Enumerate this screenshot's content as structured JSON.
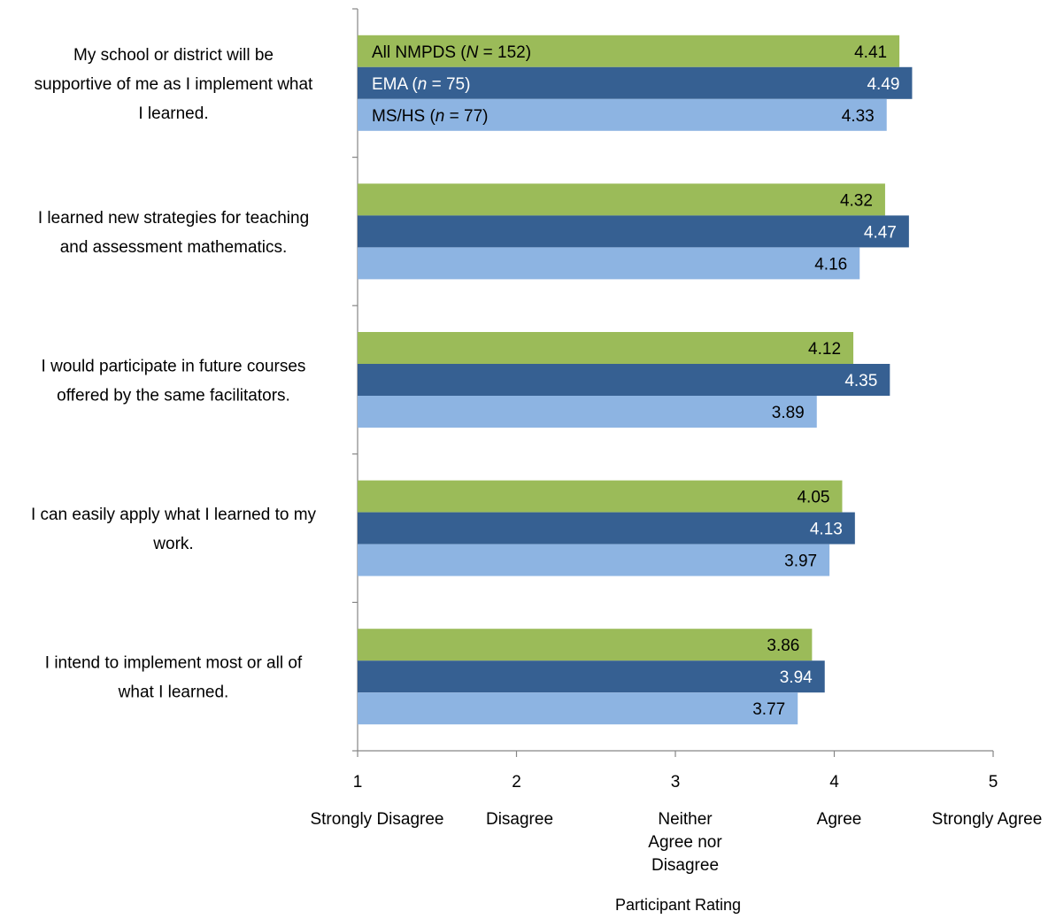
{
  "chart_data": {
    "type": "bar",
    "orientation": "horizontal",
    "categories": [
      "My school or district will be supportive of me as I implement what I learned.",
      "I learned new strategies for teaching and assessment mathematics.",
      "I would participate in future courses offered by the same facilitators.",
      "I can easily apply what I learned to my work.",
      "I intend to implement most or all of what I learned."
    ],
    "category_lines": [
      [
        "My school or district will be",
        "supportive of me as I implement what",
        "I learned."
      ],
      [
        "I learned new strategies for teaching",
        "and assessment mathematics."
      ],
      [
        "I would participate in future courses",
        "offered by the same facilitators."
      ],
      [
        "I can easily apply what I learned to my",
        "work."
      ],
      [
        "I intend to implement most or all of",
        "what I learned."
      ]
    ],
    "series": [
      {
        "name_parts": [
          "All NMPDS (",
          "N",
          " = 152)"
        ],
        "name": "All NMPDS (N = 152)",
        "color": "#9BBB59",
        "label_color": "#000000",
        "values": [
          4.41,
          4.32,
          4.12,
          4.05,
          3.86
        ]
      },
      {
        "name_parts": [
          "EMA (",
          "n",
          " = 75)"
        ],
        "name": "EMA (n = 75)",
        "color": "#366092",
        "label_color": "#FFFFFF",
        "values": [
          4.49,
          4.47,
          4.35,
          4.13,
          3.94
        ]
      },
      {
        "name_parts": [
          "MS/HS (",
          "n",
          " = 77)"
        ],
        "name": "MS/HS (n = 77)",
        "color": "#8DB4E2",
        "label_color": "#000000",
        "values": [
          4.33,
          4.16,
          3.89,
          3.97,
          3.77
        ]
      }
    ],
    "xlim": [
      1,
      5
    ],
    "ticks": [
      "1",
      "2",
      "3",
      "4",
      "5"
    ],
    "tick_values": [
      1,
      2,
      3,
      4,
      5
    ],
    "tick_descriptions": [
      [
        "Strongly Disagree"
      ],
      [
        "Disagree"
      ],
      [
        "Neither",
        "Agree nor",
        "Disagree"
      ],
      [
        "Agree"
      ],
      [
        "Strongly Agree"
      ]
    ],
    "xlabel": "Participant Rating",
    "legend_position": "inside-top-left",
    "grid": false
  }
}
